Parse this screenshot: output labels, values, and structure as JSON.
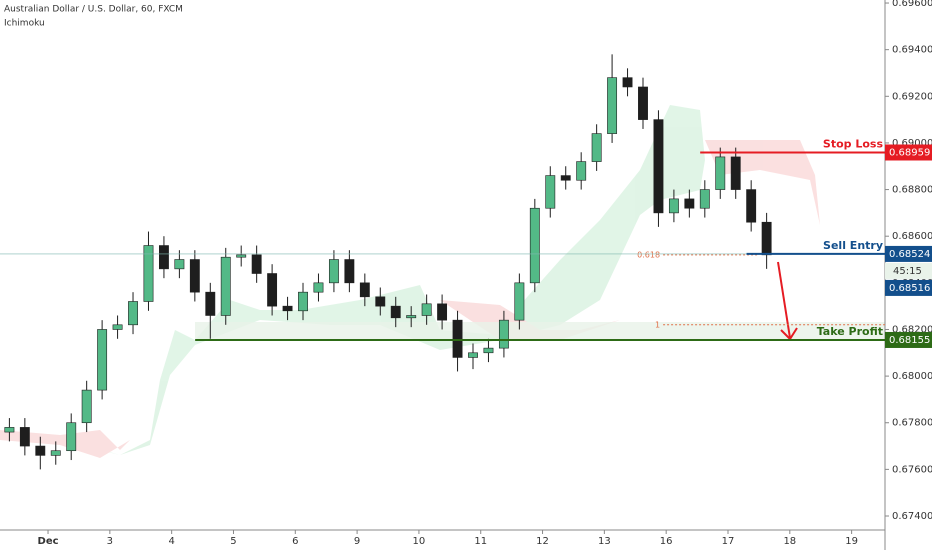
{
  "chart_data": {
    "type": "candlestick",
    "title": "Australian Dollar / U.S. Dollar, 60, FXCM",
    "subtitle": "Ichimoku",
    "up_color": "#53b987",
    "down_color": "#1e1e1e",
    "xlim": [
      -0.777,
      13.54
    ],
    "xticks": [
      {
        "value": 0,
        "label": "Dec"
      },
      {
        "value": 1,
        "label": "3"
      },
      {
        "value": 2,
        "label": "4"
      },
      {
        "value": 3,
        "label": "5"
      },
      {
        "value": 4,
        "label": "6"
      },
      {
        "value": 5,
        "label": "9"
      },
      {
        "value": 6,
        "label": "10"
      },
      {
        "value": 7,
        "label": "11"
      },
      {
        "value": 8,
        "label": "12"
      },
      {
        "value": 9,
        "label": "13"
      },
      {
        "value": 10,
        "label": "16"
      },
      {
        "value": 11,
        "label": "17"
      },
      {
        "value": 12,
        "label": "18"
      },
      {
        "value": 13,
        "label": "19"
      }
    ],
    "ylim": [
      0.6734,
      0.69613
    ],
    "yticks": [
      {
        "value": 0.674,
        "label": "0.67400"
      },
      {
        "value": 0.676,
        "label": "0.67600"
      },
      {
        "value": 0.678,
        "label": "0.67800"
      },
      {
        "value": 0.68,
        "label": "0.68000"
      },
      {
        "value": 0.682,
        "label": "0.68200"
      },
      {
        "value": 0.684,
        "label": "0.68400"
      },
      {
        "value": 0.686,
        "label": "0.68600"
      },
      {
        "value": 0.688,
        "label": "0.68800"
      },
      {
        "value": 0.69,
        "label": "0.69000"
      },
      {
        "value": 0.692,
        "label": "0.69200"
      },
      {
        "value": 0.694,
        "label": "0.69400"
      },
      {
        "value": 0.696,
        "label": "0.69600"
      }
    ],
    "x": [
      -0.75,
      -0.5,
      -0.25,
      0,
      0.25,
      0.5,
      0.75,
      1,
      1.25,
      1.5,
      1.75,
      2,
      2.25,
      2.5,
      2.75,
      3,
      3.25,
      3.5,
      3.75,
      4,
      4.25,
      4.5,
      4.75,
      5,
      5.25,
      5.5,
      5.75,
      6,
      6.25,
      6.5,
      6.75,
      7,
      7.25,
      7.5,
      7.75,
      8,
      8.25,
      8.5,
      8.75,
      9,
      9.25,
      9.5,
      9.75,
      10,
      10.25,
      10.5,
      10.75,
      11,
      11.25,
      11.5
    ],
    "open": [
      0.6776,
      0.6778,
      0.677,
      0.6766,
      0.6768,
      0.678,
      0.6794,
      0.682,
      0.6822,
      0.6832,
      0.6856,
      0.6846,
      0.685,
      0.6836,
      0.6826,
      0.6851,
      0.6852,
      0.6844,
      0.683,
      0.6828,
      0.6836,
      0.684,
      0.685,
      0.684,
      0.6834,
      0.683,
      0.6825,
      0.6826,
      0.6831,
      0.6824,
      0.6808,
      0.681,
      0.6812,
      0.6824,
      0.684,
      0.6872,
      0.6886,
      0.6884,
      0.6892,
      0.6904,
      0.6928,
      0.6924,
      0.691,
      0.687,
      0.6876,
      0.6872,
      0.688,
      0.6894,
      0.688,
      0.6866
    ],
    "high": [
      0.6782,
      0.6782,
      0.6774,
      0.6772,
      0.6784,
      0.6798,
      0.6824,
      0.6826,
      0.6836,
      0.6862,
      0.686,
      0.6854,
      0.6854,
      0.684,
      0.6855,
      0.6856,
      0.6856,
      0.6848,
      0.6834,
      0.684,
      0.6844,
      0.6854,
      0.6854,
      0.6844,
      0.6838,
      0.6834,
      0.683,
      0.6835,
      0.6835,
      0.6828,
      0.6814,
      0.6816,
      0.6828,
      0.6844,
      0.6876,
      0.689,
      0.689,
      0.6896,
      0.6908,
      0.6938,
      0.6932,
      0.6928,
      0.6914,
      0.688,
      0.688,
      0.6884,
      0.6898,
      0.6898,
      0.6884,
      0.687
    ],
    "low": [
      0.6772,
      0.6766,
      0.676,
      0.6762,
      0.6764,
      0.6776,
      0.679,
      0.6816,
      0.6818,
      0.6828,
      0.6842,
      0.6842,
      0.6832,
      0.6816,
      0.6822,
      0.6847,
      0.684,
      0.6826,
      0.6824,
      0.6824,
      0.6832,
      0.6836,
      0.6836,
      0.683,
      0.6826,
      0.6821,
      0.6821,
      0.6822,
      0.682,
      0.6802,
      0.6803,
      0.6806,
      0.6808,
      0.682,
      0.6836,
      0.6868,
      0.688,
      0.688,
      0.6888,
      0.69,
      0.692,
      0.6906,
      0.6864,
      0.6866,
      0.6868,
      0.6868,
      0.6876,
      0.6876,
      0.6862,
      0.6846
    ],
    "close": [
      0.6778,
      0.677,
      0.6766,
      0.6768,
      0.678,
      0.6794,
      0.682,
      0.6822,
      0.6832,
      0.6856,
      0.6846,
      0.685,
      0.6836,
      0.6826,
      0.6851,
      0.6852,
      0.6844,
      0.683,
      0.6828,
      0.6836,
      0.684,
      0.685,
      0.684,
      0.6834,
      0.683,
      0.6825,
      0.6826,
      0.6831,
      0.6824,
      0.6808,
      0.681,
      0.6812,
      0.6824,
      0.684,
      0.6872,
      0.6886,
      0.6884,
      0.6892,
      0.6904,
      0.6928,
      0.6924,
      0.691,
      0.687,
      0.6876,
      0.6872,
      0.688,
      0.6894,
      0.688,
      0.6866,
      0.6852
    ],
    "levels": [
      {
        "name": "Stop Loss",
        "value": 0.68959,
        "value_label": "0.68959",
        "color": "#e51c23",
        "start": 10.55
      },
      {
        "name": "Sell Entry",
        "value": 0.68524,
        "value_label": "0.68524",
        "color": "#134f8c",
        "start": 11.3
      },
      {
        "name": "Take Profit",
        "value": 0.68155,
        "value_label": "0.68155",
        "color": "#2d6b16",
        "start": 2.38
      }
    ],
    "last_price": {
      "value": 0.68516,
      "label": "0.68516",
      "countdown": "45:15"
    },
    "fib": {
      "from": 0.69005,
      "to": 0.6822,
      "start": 9.95,
      "levels": [
        0.618,
        1
      ],
      "color": "#e0714a"
    }
  }
}
